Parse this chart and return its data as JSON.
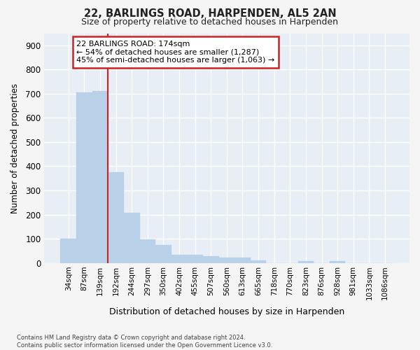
{
  "title1": "22, BARLINGS ROAD, HARPENDEN, AL5 2AN",
  "title2": "Size of property relative to detached houses in Harpenden",
  "xlabel": "Distribution of detached houses by size in Harpenden",
  "ylabel": "Number of detached properties",
  "categories": [
    "34sqm",
    "87sqm",
    "139sqm",
    "192sqm",
    "244sqm",
    "297sqm",
    "350sqm",
    "402sqm",
    "455sqm",
    "507sqm",
    "560sqm",
    "613sqm",
    "665sqm",
    "718sqm",
    "770sqm",
    "823sqm",
    "876sqm",
    "928sqm",
    "981sqm",
    "1033sqm",
    "1086sqm"
  ],
  "values": [
    100,
    705,
    710,
    375,
    207,
    97,
    73,
    33,
    33,
    27,
    21,
    21,
    10,
    0,
    0,
    8,
    0,
    8,
    0,
    0,
    0
  ],
  "bar_color": "#b8d0e8",
  "bar_edge_color": "#b8d0e8",
  "vline_position": 2.5,
  "vline_color": "#cc2222",
  "annotation_line1": "22 BARLINGS ROAD: 174sqm",
  "annotation_line2": "← 54% of detached houses are smaller (1,287)",
  "annotation_line3": "45% of semi-detached houses are larger (1,063) →",
  "annotation_box_facecolor": "#ffffff",
  "annotation_box_edgecolor": "#cc2222",
  "ylim": [
    0,
    950
  ],
  "yticks": [
    0,
    100,
    200,
    300,
    400,
    500,
    600,
    700,
    800,
    900
  ],
  "fig_facecolor": "#f5f5f5",
  "ax_facecolor": "#e8eef5",
  "grid_color": "#ffffff",
  "footnote": "Contains HM Land Registry data © Crown copyright and database right 2024.\nContains public sector information licensed under the Open Government Licence v3.0."
}
